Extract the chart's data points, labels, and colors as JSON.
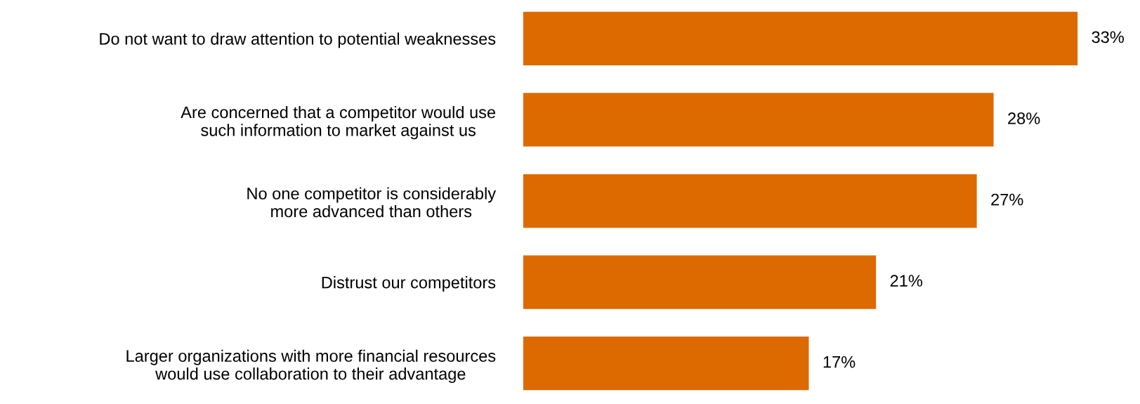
{
  "chart_data": {
    "type": "bar",
    "orientation": "horizontal",
    "categories": [
      "Do not want to draw attention to potential weaknesses",
      "Are concerned that a competitor would use\nsuch information to market against us",
      "No one competitor is considerably\nmore advanced than others",
      "Distrust our competitors",
      "Larger organizations with more financial resources\nwould use collaboration to their advantage"
    ],
    "values": [
      33,
      28,
      27,
      21,
      17
    ],
    "value_labels": [
      "33%",
      "28%",
      "27%",
      "21%",
      "17%"
    ],
    "color": "#dd6a00",
    "tick_labels": "y",
    "grid": false,
    "legend": false
  }
}
